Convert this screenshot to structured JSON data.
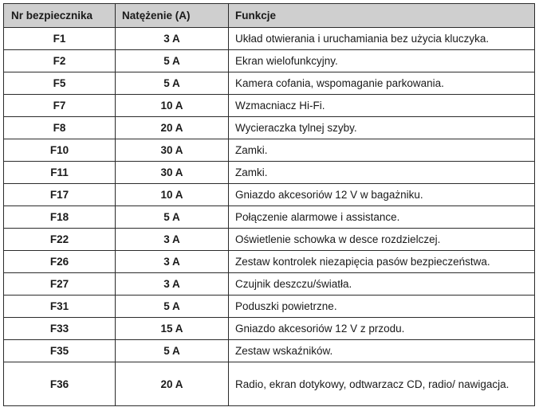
{
  "table": {
    "headers": {
      "fuse": "Nr bezpiecznika",
      "amperage": "Natężenie (A)",
      "functions": "Funkcje"
    },
    "rows": [
      {
        "fuse": "F1",
        "amperage": "3 A",
        "function": "Układ otwierania i uruchamiania bez użycia kluczyka."
      },
      {
        "fuse": "F2",
        "amperage": "5 A",
        "function": "Ekran wielofunkcyjny."
      },
      {
        "fuse": "F5",
        "amperage": "5 A",
        "function": "Kamera cofania, wspomaganie parkowania."
      },
      {
        "fuse": "F7",
        "amperage": "10 A",
        "function": "Wzmacniacz Hi-Fi."
      },
      {
        "fuse": "F8",
        "amperage": "20 A",
        "function": "Wycieraczka tylnej szyby."
      },
      {
        "fuse": "F10",
        "amperage": "30 A",
        "function": "Zamki."
      },
      {
        "fuse": "F11",
        "amperage": "30 A",
        "function": "Zamki."
      },
      {
        "fuse": "F17",
        "amperage": "10 A",
        "function": "Gniazdo akcesoriów 12 V w bagażniku."
      },
      {
        "fuse": "F18",
        "amperage": "5 A",
        "function": "Połączenie alarmowe i assistance."
      },
      {
        "fuse": "F22",
        "amperage": "3 A",
        "function": "Oświetlenie schowka w desce rozdzielczej."
      },
      {
        "fuse": "F26",
        "amperage": "3 A",
        "function": "Zestaw kontrolek niezapięcia pasów bezpieczeństwa."
      },
      {
        "fuse": "F27",
        "amperage": "3 A",
        "function": "Czujnik deszczu/światła."
      },
      {
        "fuse": "F31",
        "amperage": "5 A",
        "function": "Poduszki powietrzne."
      },
      {
        "fuse": "F33",
        "amperage": "15 A",
        "function": "Gniazdo akcesoriów 12 V z przodu."
      },
      {
        "fuse": "F35",
        "amperage": "5 A",
        "function": "Zestaw wskaźników."
      },
      {
        "fuse": "F36",
        "amperage": "20 A",
        "function": "Radio, ekran dotykowy, odtwarzacz CD, radio/ nawigacja."
      }
    ]
  }
}
